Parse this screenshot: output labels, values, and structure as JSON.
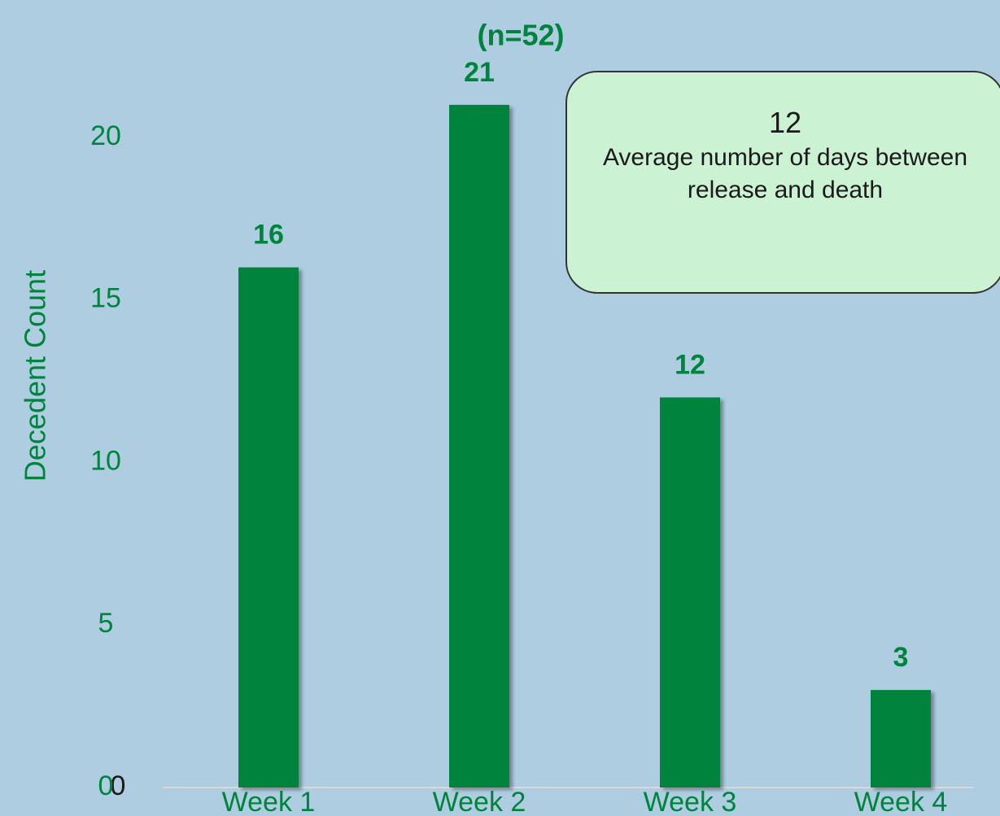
{
  "chart_data": {
    "type": "bar",
    "title": "(n=52)",
    "y_label": "Decedent Count",
    "categories": [
      "Week 1",
      "Week 2",
      "Week 3",
      "Week 4"
    ],
    "values": [
      16,
      21,
      12,
      3
    ],
    "color": "#00843d",
    "ylim": [
      0,
      24
    ],
    "yticks": [
      0,
      5,
      10,
      15,
      20
    ],
    "zero_tick": 0,
    "grid": false,
    "annotation": {
      "value": 12,
      "text": "Average number of days between release and death"
    }
  }
}
